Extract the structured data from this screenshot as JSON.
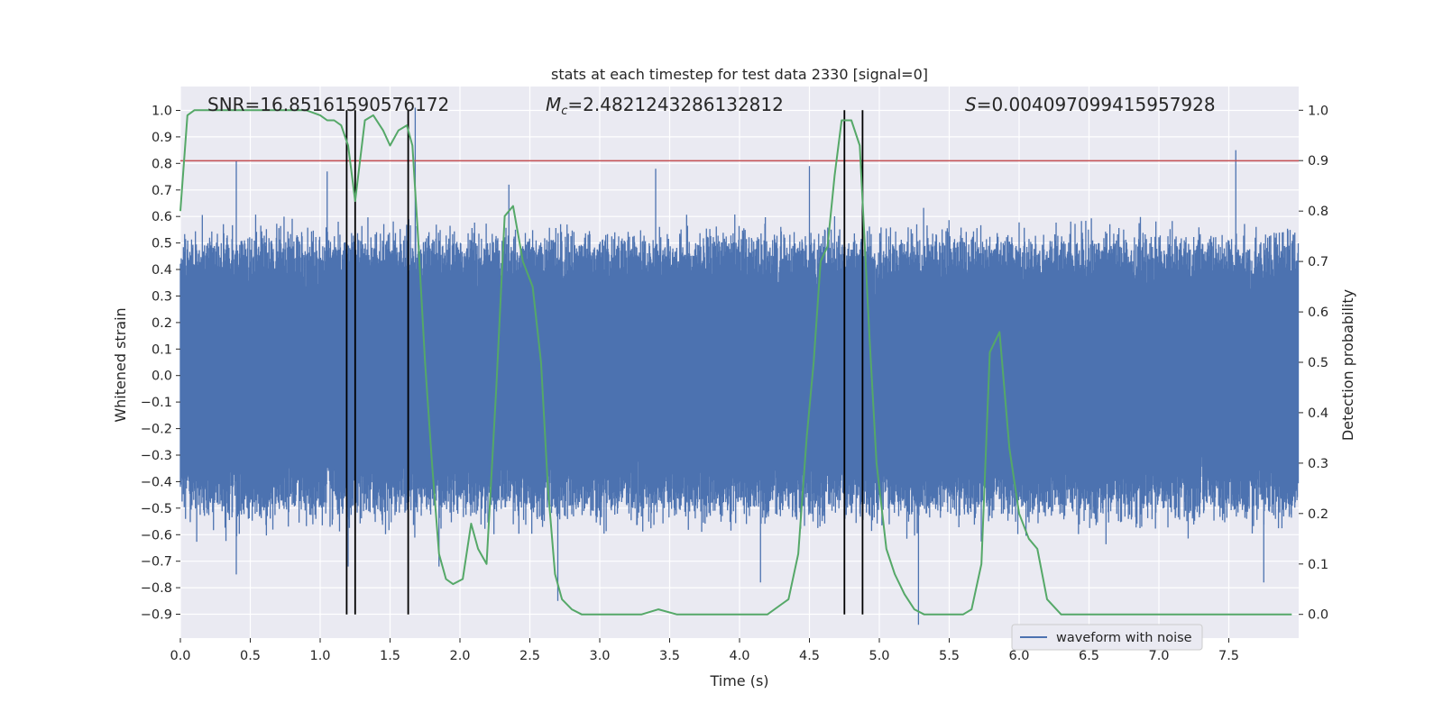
{
  "chart_data": {
    "type": "line",
    "title": "stats at each timestep for test data 2330 [signal=0]",
    "xlabel": "Time (s)",
    "ylabel_left": "Whitened strain",
    "ylabel_right": "Detection probability",
    "xlim": [
      0,
      8
    ],
    "ylim_left": [
      -0.99,
      1.09
    ],
    "ylim_right": [
      -0.047,
      1.047
    ],
    "x_ticks": [
      0,
      0.5,
      1,
      1.5,
      2,
      2.5,
      3,
      3.5,
      4,
      4.5,
      5,
      5.5,
      6,
      6.5,
      7,
      7.5
    ],
    "x_tick_labels": [
      "0.0",
      "0.5",
      "1.0",
      "1.5",
      "2.0",
      "2.5",
      "3.0",
      "3.5",
      "4.0",
      "4.5",
      "5.0",
      "5.5",
      "6.0",
      "6.5",
      "7.0",
      "7.5"
    ],
    "left_ticks": [
      -0.9,
      -0.8,
      -0.7,
      -0.6,
      -0.5,
      -0.4,
      -0.3,
      -0.2,
      -0.1,
      0,
      0.1,
      0.2,
      0.3,
      0.4,
      0.5,
      0.6,
      0.7,
      0.8,
      0.9,
      1.0
    ],
    "left_tick_labels": [
      "−0.9",
      "−0.8",
      "−0.7",
      "−0.6",
      "−0.5",
      "−0.4",
      "−0.3",
      "−0.2",
      "−0.1",
      "0.0",
      "0.1",
      "0.2",
      "0.3",
      "0.4",
      "0.5",
      "0.6",
      "0.7",
      "0.8",
      "0.9",
      "1.0"
    ],
    "right_ticks": [
      0,
      0.1,
      0.2,
      0.3,
      0.4,
      0.5,
      0.6,
      0.7,
      0.8,
      0.9,
      1.0
    ],
    "right_tick_labels": [
      "0.0",
      "0.1",
      "0.2",
      "0.3",
      "0.4",
      "0.5",
      "0.6",
      "0.7",
      "0.8",
      "0.9",
      "1.0"
    ],
    "annotations": {
      "snr": "SNR=16.85161590576172",
      "mc_symbol": "M",
      "mc_sub": "c",
      "mc_value": "=2.4821243286132812",
      "s_symbol": "S",
      "s_value": "=0.004097099415957928"
    },
    "legend": {
      "label": "waveform with noise",
      "loc": "lower-right"
    },
    "threshold": {
      "value": 0.81,
      "axis": "left",
      "color": "#c44e52"
    },
    "vertical_lines": [
      1.19,
      1.25,
      1.63,
      4.75,
      4.88
    ],
    "series": [
      {
        "name": "waveform with noise",
        "axis": "left",
        "color": "#4c72b0",
        "style": "noise",
        "envelope": 0.45,
        "peaks": [
          {
            "x": 0.4,
            "y": 0.81
          },
          {
            "x": 0.4,
            "y": -0.75
          },
          {
            "x": 1.05,
            "y": 0.77
          },
          {
            "x": 1.2,
            "y": -0.72
          },
          {
            "x": 1.68,
            "y": 1.01
          },
          {
            "x": 1.85,
            "y": -0.72
          },
          {
            "x": 2.35,
            "y": 0.72
          },
          {
            "x": 2.7,
            "y": -0.85
          },
          {
            "x": 3.4,
            "y": 0.78
          },
          {
            "x": 4.15,
            "y": -0.78
          },
          {
            "x": 4.5,
            "y": 0.79
          },
          {
            "x": 5.28,
            "y": -0.94
          },
          {
            "x": 7.55,
            "y": 0.85
          },
          {
            "x": 7.75,
            "y": -0.78
          }
        ]
      },
      {
        "name": "detection probability",
        "axis": "right",
        "color": "#55a868",
        "x": [
          0.0,
          0.05,
          0.1,
          0.15,
          0.2,
          0.3,
          0.4,
          0.5,
          0.6,
          0.7,
          0.8,
          0.9,
          1.0,
          1.05,
          1.1,
          1.15,
          1.2,
          1.25,
          1.32,
          1.38,
          1.45,
          1.5,
          1.56,
          1.62,
          1.66,
          1.7,
          1.75,
          1.8,
          1.85,
          1.9,
          1.95,
          2.02,
          2.08,
          2.13,
          2.19,
          2.26,
          2.32,
          2.38,
          2.45,
          2.52,
          2.58,
          2.63,
          2.68,
          2.73,
          2.8,
          2.87,
          2.95,
          3.0,
          3.1,
          3.2,
          3.3,
          3.42,
          3.55,
          3.7,
          3.85,
          4.0,
          4.13,
          4.2,
          4.3,
          4.35,
          4.42,
          4.48,
          4.53,
          4.58,
          4.63,
          4.68,
          4.73,
          4.8,
          4.86,
          4.93,
          4.98,
          5.05,
          5.11,
          5.18,
          5.25,
          5.32,
          5.45,
          5.6,
          5.66,
          5.73,
          5.79,
          5.86,
          5.93,
          6.0,
          6.07,
          6.13,
          6.2,
          6.3,
          6.5,
          6.7,
          6.9,
          7.1,
          7.3,
          7.5,
          7.7,
          7.95
        ],
        "y": [
          0.8,
          0.99,
          1.0,
          1.0,
          1.0,
          1.0,
          1.0,
          1.0,
          1.0,
          1.0,
          1.0,
          1.0,
          0.99,
          0.98,
          0.98,
          0.97,
          0.93,
          0.82,
          0.98,
          0.99,
          0.96,
          0.93,
          0.96,
          0.97,
          0.93,
          0.75,
          0.5,
          0.3,
          0.12,
          0.07,
          0.06,
          0.07,
          0.18,
          0.13,
          0.1,
          0.45,
          0.79,
          0.81,
          0.7,
          0.65,
          0.5,
          0.25,
          0.08,
          0.03,
          0.01,
          0.0,
          0.0,
          0.0,
          0.0,
          0.0,
          0.0,
          0.01,
          0.0,
          0.0,
          0.0,
          0.0,
          0.0,
          0.0,
          0.02,
          0.03,
          0.12,
          0.35,
          0.5,
          0.7,
          0.73,
          0.87,
          0.98,
          0.98,
          0.93,
          0.55,
          0.3,
          0.13,
          0.08,
          0.04,
          0.01,
          0.0,
          0.0,
          0.0,
          0.01,
          0.1,
          0.52,
          0.56,
          0.33,
          0.2,
          0.15,
          0.13,
          0.03,
          0.0,
          0.0,
          0.0,
          0.0,
          0.0,
          0.0,
          0.0,
          0.0,
          0.0
        ]
      }
    ]
  }
}
